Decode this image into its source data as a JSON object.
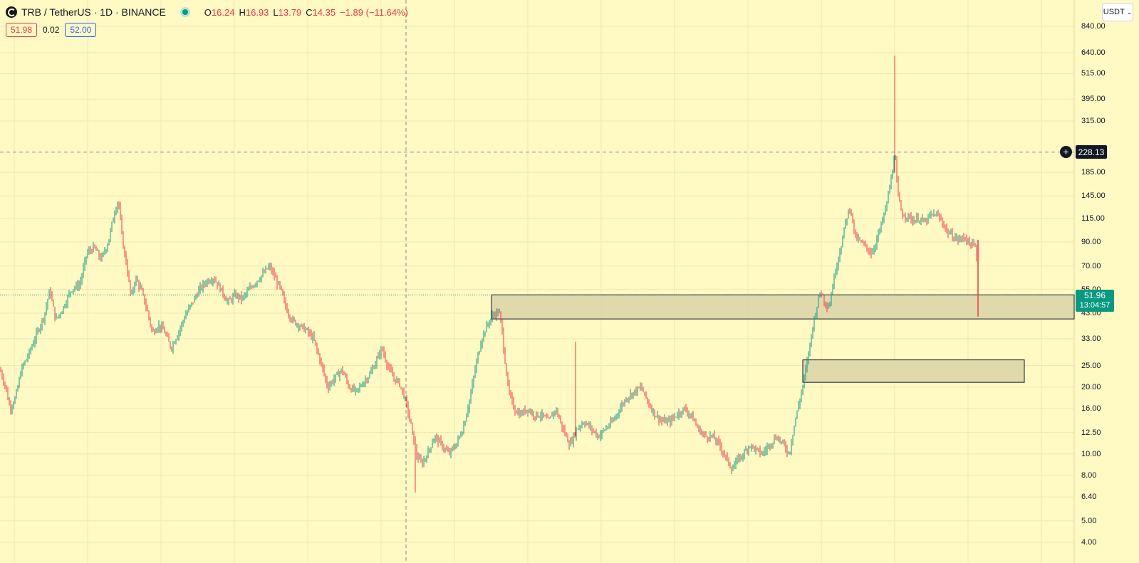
{
  "header": {
    "symbol": "TRB / TetherUS · 1D · BINANCE",
    "ohlc": {
      "o_label": "O",
      "o_value": "16.24",
      "h_label": "H",
      "h_value": "16.93",
      "l_label": "L",
      "l_value": "13.79",
      "c_label": "C",
      "c_value": "14.35",
      "change": "−1.89 (−11.64%)"
    },
    "bid": "51.98",
    "spread": "0.02",
    "ask": "52.00"
  },
  "currency_button": "USDT",
  "price_axis": {
    "ticks": [
      "840.00",
      "640.00",
      "515.00",
      "395.00",
      "315.00",
      "185.00",
      "145.00",
      "115.00",
      "90.00",
      "70.00",
      "55.00",
      "43.00",
      "33.00",
      "25.00",
      "20.00",
      "16.00",
      "12.50",
      "10.00",
      "8.00",
      "6.40",
      "5.00",
      "4.00"
    ]
  },
  "crosshair_price": "228.13",
  "last_price": {
    "value": "51.96",
    "countdown": "13:04:57"
  },
  "colors": {
    "background": "#fff9c4",
    "up": "#089981",
    "down": "#f23645",
    "zone_fill": "#d9d4a8"
  },
  "chart_data": {
    "type": "candlestick",
    "scale": "log",
    "ylim": [
      4.0,
      840.0
    ],
    "path_points": [
      [
        0,
        24
      ],
      [
        8,
        20
      ],
      [
        14,
        16
      ],
      [
        22,
        18
      ],
      [
        30,
        24
      ],
      [
        40,
        28
      ],
      [
        52,
        35
      ],
      [
        62,
        42
      ],
      [
        70,
        55
      ],
      [
        78,
        40
      ],
      [
        88,
        45
      ],
      [
        100,
        55
      ],
      [
        112,
        58
      ],
      [
        122,
        80
      ],
      [
        132,
        85
      ],
      [
        142,
        75
      ],
      [
        152,
        90
      ],
      [
        160,
        120
      ],
      [
        166,
        140
      ],
      [
        172,
        90
      ],
      [
        178,
        70
      ],
      [
        184,
        50
      ],
      [
        190,
        62
      ],
      [
        198,
        55
      ],
      [
        206,
        45
      ],
      [
        214,
        35
      ],
      [
        222,
        38
      ],
      [
        230,
        36
      ],
      [
        240,
        30
      ],
      [
        250,
        35
      ],
      [
        260,
        42
      ],
      [
        270,
        48
      ],
      [
        280,
        55
      ],
      [
        290,
        60
      ],
      [
        300,
        62
      ],
      [
        310,
        55
      ],
      [
        320,
        48
      ],
      [
        330,
        52
      ],
      [
        340,
        50
      ],
      [
        350,
        55
      ],
      [
        360,
        60
      ],
      [
        370,
        65
      ],
      [
        378,
        70
      ],
      [
        386,
        62
      ],
      [
        394,
        55
      ],
      [
        402,
        45
      ],
      [
        410,
        40
      ],
      [
        420,
        38
      ],
      [
        430,
        36
      ],
      [
        440,
        33
      ],
      [
        450,
        26
      ],
      [
        460,
        20
      ],
      [
        470,
        22
      ],
      [
        480,
        24
      ],
      [
        490,
        20
      ],
      [
        500,
        19
      ],
      [
        510,
        21
      ],
      [
        520,
        23
      ],
      [
        530,
        27
      ],
      [
        536,
        30
      ],
      [
        544,
        25
      ],
      [
        552,
        22
      ],
      [
        560,
        21
      ],
      [
        568,
        18
      ],
      [
        576,
        14
      ],
      [
        584,
        10
      ],
      [
        592,
        9
      ],
      [
        600,
        10
      ],
      [
        610,
        12
      ],
      [
        620,
        11
      ],
      [
        630,
        10
      ],
      [
        640,
        11
      ],
      [
        650,
        13
      ],
      [
        660,
        18
      ],
      [
        668,
        25
      ],
      [
        676,
        33
      ],
      [
        684,
        38
      ],
      [
        692,
        42
      ],
      [
        700,
        44
      ],
      [
        704,
        38
      ],
      [
        708,
        28
      ],
      [
        714,
        19
      ],
      [
        722,
        16
      ],
      [
        730,
        15
      ],
      [
        740,
        16
      ],
      [
        750,
        15
      ],
      [
        760,
        15
      ],
      [
        770,
        14
      ],
      [
        780,
        16
      ],
      [
        790,
        13
      ],
      [
        800,
        11
      ],
      [
        810,
        13
      ],
      [
        820,
        14
      ],
      [
        830,
        13
      ],
      [
        840,
        12
      ],
      [
        850,
        13
      ],
      [
        860,
        14
      ],
      [
        870,
        16
      ],
      [
        880,
        18
      ],
      [
        890,
        19
      ],
      [
        900,
        20
      ],
      [
        910,
        17
      ],
      [
        920,
        15
      ],
      [
        930,
        14
      ],
      [
        940,
        14
      ],
      [
        950,
        15
      ],
      [
        960,
        16
      ],
      [
        970,
        15
      ],
      [
        980,
        13
      ],
      [
        990,
        12
      ],
      [
        1000,
        12
      ],
      [
        1010,
        11
      ],
      [
        1020,
        9.5
      ],
      [
        1028,
        8.5
      ],
      [
        1036,
        9.5
      ],
      [
        1044,
        10
      ],
      [
        1052,
        11
      ],
      [
        1060,
        10.5
      ],
      [
        1070,
        10
      ],
      [
        1080,
        11
      ],
      [
        1090,
        12
      ],
      [
        1100,
        11
      ],
      [
        1108,
        10
      ],
      [
        1114,
        13
      ],
      [
        1120,
        16
      ],
      [
        1128,
        21
      ],
      [
        1134,
        27
      ],
      [
        1140,
        36
      ],
      [
        1146,
        45
      ],
      [
        1152,
        55
      ],
      [
        1158,
        48
      ],
      [
        1164,
        46
      ],
      [
        1170,
        60
      ],
      [
        1176,
        75
      ],
      [
        1182,
        90
      ],
      [
        1188,
        115
      ],
      [
        1194,
        130
      ],
      [
        1200,
        95
      ],
      [
        1208,
        90
      ],
      [
        1216,
        85
      ],
      [
        1224,
        80
      ],
      [
        1232,
        95
      ],
      [
        1240,
        115
      ],
      [
        1246,
        140
      ],
      [
        1252,
        180
      ],
      [
        1256,
        230
      ],
      [
        1260,
        150
      ],
      [
        1266,
        120
      ],
      [
        1274,
        118
      ],
      [
        1282,
        112
      ],
      [
        1290,
        115
      ],
      [
        1298,
        110
      ],
      [
        1306,
        118
      ],
      [
        1314,
        120
      ],
      [
        1322,
        112
      ],
      [
        1330,
        100
      ],
      [
        1338,
        95
      ],
      [
        1346,
        92
      ],
      [
        1354,
        95
      ],
      [
        1362,
        88
      ],
      [
        1370,
        85
      ],
      [
        1374,
        55
      ]
    ],
    "wick_spikes": [
      {
        "x": 808,
        "high": 32.0,
        "low": 12.0
      },
      {
        "x": 1256,
        "high": 620.0,
        "low": 185.0
      },
      {
        "x": 583,
        "high": 12.0,
        "low": 6.7
      }
    ],
    "zones": [
      {
        "high": 52.0,
        "low": 40.5
      },
      {
        "high": 26.5,
        "low": 21.0
      }
    ],
    "crosshair": {
      "price": 228.13
    },
    "last_price": 51.96
  }
}
